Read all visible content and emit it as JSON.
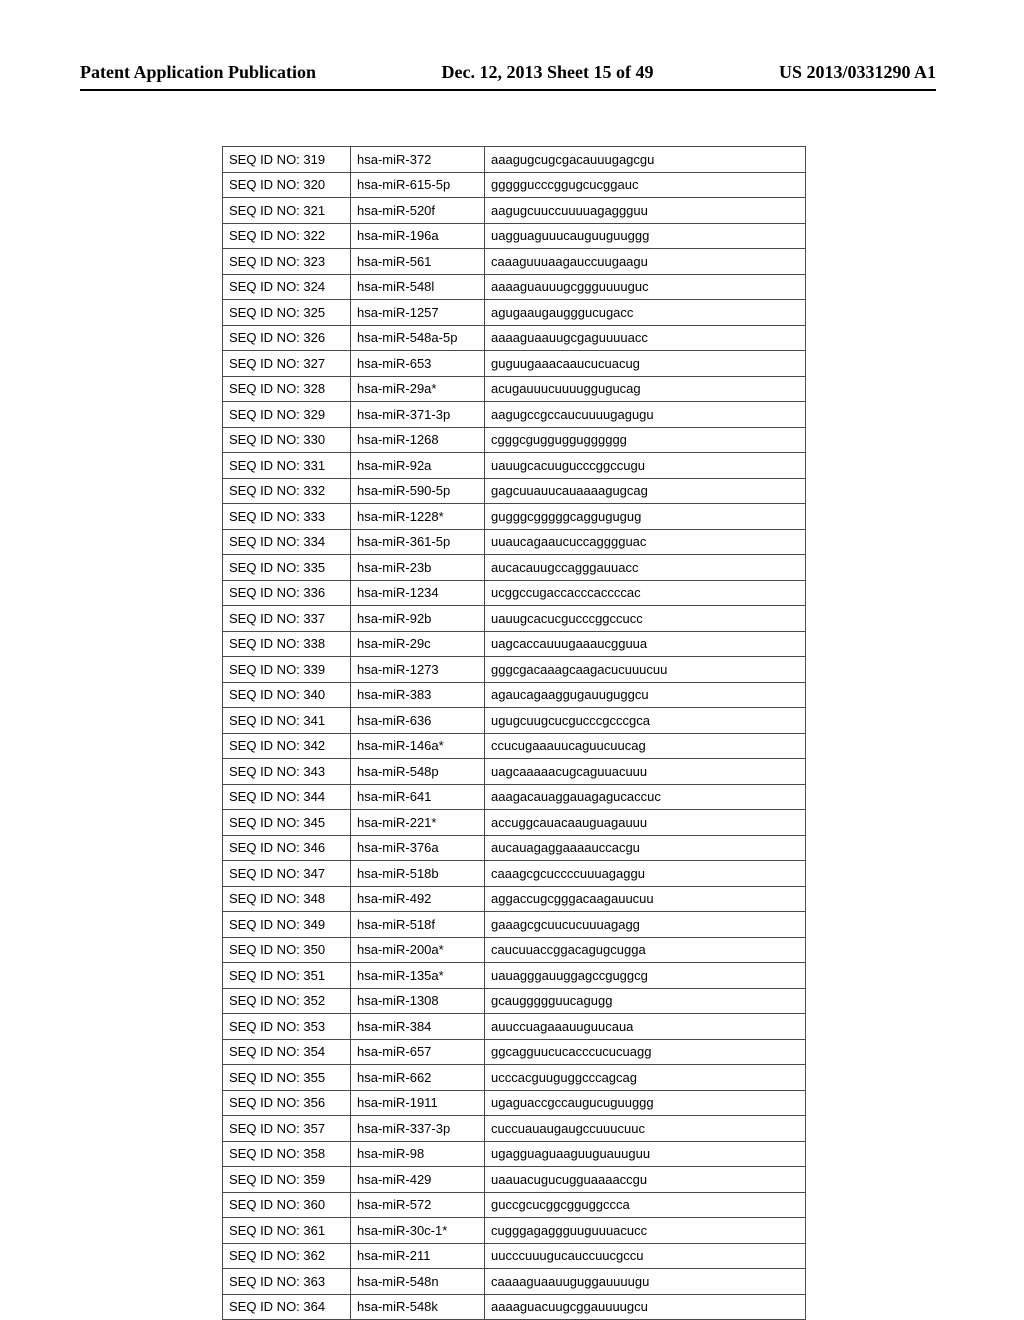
{
  "header": {
    "left": "Patent Application Publication",
    "mid": "Dec. 12, 2013  Sheet 15 of 49",
    "right": "US 2013/0331290 A1"
  },
  "table": {
    "columns": [
      "seq_id",
      "mir_name",
      "sequence"
    ],
    "rows": [
      [
        "SEQ ID NO: 319",
        "hsa-miR-372",
        "aaagugcugcgacauuugagcgu"
      ],
      [
        "SEQ ID NO: 320",
        "hsa-miR-615-5p",
        "gggggucccggugcucggauc"
      ],
      [
        "SEQ ID NO: 321",
        "hsa-miR-520f",
        "aagugcuuccuuuuagaggguu"
      ],
      [
        "SEQ ID NO: 322",
        "hsa-miR-196a",
        "uagguaguuucauguuguuggg"
      ],
      [
        "SEQ ID NO: 323",
        "hsa-miR-561",
        "caaaguuuaagauccuugaagu"
      ],
      [
        "SEQ ID NO: 324",
        "hsa-miR-548l",
        "aaaaguauuugcggguuuuguc"
      ],
      [
        "SEQ ID NO: 325",
        "hsa-miR-1257",
        "agugaaugaugggucugacc"
      ],
      [
        "SEQ ID NO: 326",
        "hsa-miR-548a-5p",
        "aaaaguaauugcgaguuuuacc"
      ],
      [
        "SEQ ID NO: 327",
        "hsa-miR-653",
        "guguugaaacaaucucuacug"
      ],
      [
        "SEQ ID NO: 328",
        "hsa-miR-29a*",
        "acugauuucuuuuggugucag"
      ],
      [
        "SEQ ID NO: 329",
        "hsa-miR-371-3p",
        "aagugccgccaucuuuugagugu"
      ],
      [
        "SEQ ID NO: 330",
        "hsa-miR-1268",
        "cgggcgugguggugggggg"
      ],
      [
        "SEQ ID NO: 331",
        "hsa-miR-92a",
        "uauugcacuugucccggccugu"
      ],
      [
        "SEQ ID NO: 332",
        "hsa-miR-590-5p",
        "gagcuuauucauaaaagugcag"
      ],
      [
        "SEQ ID NO: 333",
        "hsa-miR-1228*",
        "gugggcgggggcaggugugug"
      ],
      [
        "SEQ ID NO: 334",
        "hsa-miR-361-5p",
        "uuaucagaaucuccagggguac"
      ],
      [
        "SEQ ID NO: 335",
        "hsa-miR-23b",
        "aucacauugccagggauuacc"
      ],
      [
        "SEQ ID NO: 336",
        "hsa-miR-1234",
        "ucggccugaccacccaccccac"
      ],
      [
        "SEQ ID NO: 337",
        "hsa-miR-92b",
        "uauugcacucgucccggccucc"
      ],
      [
        "SEQ ID NO: 338",
        "hsa-miR-29c",
        "uagcaccauuugaaaucgguua"
      ],
      [
        "SEQ ID NO: 339",
        "hsa-miR-1273",
        "gggcgacaaagcaagacucuuucuu"
      ],
      [
        "SEQ ID NO: 340",
        "hsa-miR-383",
        "agaucagaaggugauuguggcu"
      ],
      [
        "SEQ ID NO: 341",
        "hsa-miR-636",
        "ugugcuugcucgucccgcccgca"
      ],
      [
        "SEQ ID NO: 342",
        "hsa-miR-146a*",
        "ccucugaaauucaguucuucag"
      ],
      [
        "SEQ ID NO: 343",
        "hsa-miR-548p",
        "uagcaaaaacugcaguuacuuu"
      ],
      [
        "SEQ ID NO: 344",
        "hsa-miR-641",
        "aaagacauaggauagagucaccuc"
      ],
      [
        "SEQ ID NO: 345",
        "hsa-miR-221*",
        "accuggcauacaauguagauuu"
      ],
      [
        "SEQ ID NO: 346",
        "hsa-miR-376a",
        "aucauagaggaaaauccacgu"
      ],
      [
        "SEQ ID NO: 347",
        "hsa-miR-518b",
        "caaagcgcuccccuuuagaggu"
      ],
      [
        "SEQ ID NO: 348",
        "hsa-miR-492",
        "aggaccugcgggacaagauucuu"
      ],
      [
        "SEQ ID NO: 349",
        "hsa-miR-518f",
        "gaaagcgcuucucuuuagagg"
      ],
      [
        "SEQ ID NO: 350",
        "hsa-miR-200a*",
        "caucuuaccggacagugcugga"
      ],
      [
        "SEQ ID NO: 351",
        "hsa-miR-135a*",
        "uauagggauuggagccguggcg"
      ],
      [
        "SEQ ID NO: 352",
        "hsa-miR-1308",
        "gcauggggguucagugg"
      ],
      [
        "SEQ ID NO: 353",
        "hsa-miR-384",
        "auuccuagaaauuguucaua"
      ],
      [
        "SEQ ID NO: 354",
        "hsa-miR-657",
        "ggcagguucucacccucucuagg"
      ],
      [
        "SEQ ID NO: 355",
        "hsa-miR-662",
        "ucccacguuguggcccagcag"
      ],
      [
        "SEQ ID NO: 356",
        "hsa-miR-1911",
        "ugaguaccgccaugucuguuggg"
      ],
      [
        "SEQ ID NO: 357",
        "hsa-miR-337-3p",
        "cuccuauaugaugccuuucuuc"
      ],
      [
        "SEQ ID NO: 358",
        "hsa-miR-98",
        "ugagguaguaaguuguauuguu"
      ],
      [
        "SEQ ID NO: 359",
        "hsa-miR-429",
        "uaauacugucugguaaaaccgu"
      ],
      [
        "SEQ ID NO: 360",
        "hsa-miR-572",
        "guccgcucggcgguggccca"
      ],
      [
        "SEQ ID NO: 361",
        "hsa-miR-30c-1*",
        "cugggagaggguuguuuacucc"
      ],
      [
        "SEQ ID NO: 362",
        "hsa-miR-211",
        "uucccuuugucauccuucgccu"
      ],
      [
        "SEQ ID NO: 363",
        "hsa-miR-548n",
        "caaaaguaauuguggauuuugu"
      ],
      [
        "SEQ ID NO: 364",
        "hsa-miR-548k",
        "aaaaguacuugcggauuuugcu"
      ]
    ]
  }
}
